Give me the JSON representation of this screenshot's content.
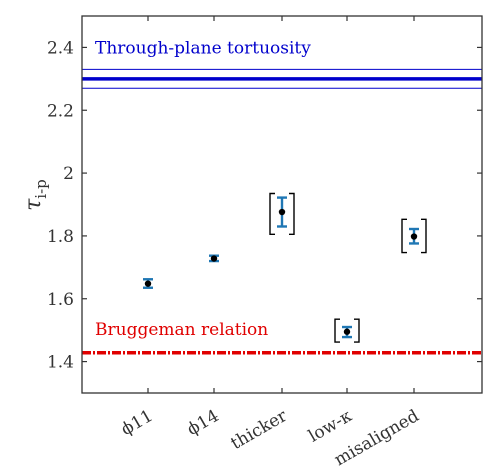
{
  "chart_data": {
    "type": "scatter",
    "ylabel": "τ",
    "ylabel_subscript": "i-p",
    "ylim": [
      1.3,
      2.5
    ],
    "yticks": [
      "1.4",
      "1.6",
      "1.8",
      "2",
      "2.2",
      "2.4"
    ],
    "ytick_values": [
      1.4,
      1.6,
      1.8,
      2.0,
      2.2,
      2.4
    ],
    "categories": [
      "ϕ11",
      "ϕ14",
      "thicker",
      "low-κ",
      "misaligned"
    ],
    "points": [
      {
        "category": "ϕ11",
        "y": 1.648,
        "err_low": 1.635,
        "err_high": 1.662,
        "bracket": false
      },
      {
        "category": "ϕ14",
        "y": 1.728,
        "err_low": 1.72,
        "err_high": 1.737,
        "bracket": false
      },
      {
        "category": "thicker",
        "y": 1.876,
        "err_low": 1.83,
        "err_high": 1.922,
        "bracket": true,
        "bracket_low": 1.805,
        "bracket_high": 1.935
      },
      {
        "category": "low-κ",
        "y": 1.495,
        "err_low": 1.478,
        "err_high": 1.51,
        "bracket": true,
        "bracket_low": 1.462,
        "bracket_high": 1.535
      },
      {
        "category": "misaligned",
        "y": 1.798,
        "err_low": 1.776,
        "err_high": 1.822,
        "bracket": true,
        "bracket_low": 1.747,
        "bracket_high": 1.853
      }
    ],
    "reference_lines": [
      {
        "label": "Through-plane tortuosity",
        "y": 2.3,
        "band": [
          2.27,
          2.33
        ],
        "color": "#0000cc",
        "style": "solid"
      },
      {
        "label": "Bruggeman relation",
        "y": 1.428,
        "color": "#e00000",
        "style": "dashdot"
      }
    ],
    "colors": {
      "errorbar": "#1f77b4",
      "marker": "#000000",
      "bracket": "#000000",
      "axis": "#333333"
    },
    "grid": false
  }
}
